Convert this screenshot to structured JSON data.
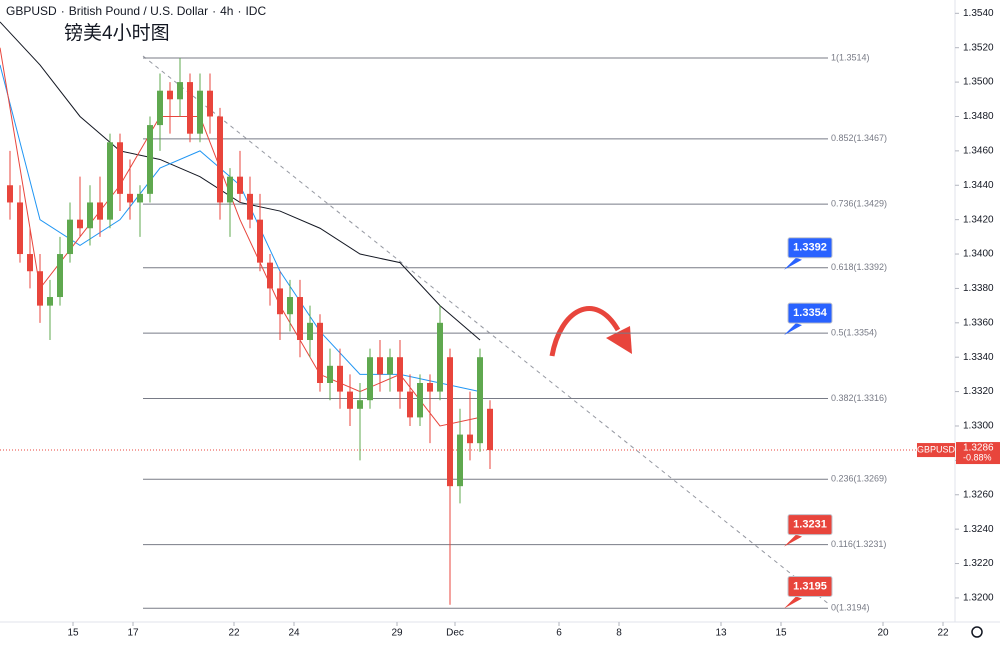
{
  "chart_data": {
    "type": "candlestick",
    "header": {
      "symbol": "GBPUSD",
      "name": "British Pound / U.S. Dollar",
      "interval": "4h",
      "source": "IDC"
    },
    "subtitle": "镑美4小时图",
    "up_color": "#5fa84f",
    "down_color": "#e8453c",
    "xlim": [
      0,
      191
    ],
    "xticks": [
      {
        "value": 14.6,
        "label": "15"
      },
      {
        "value": 26.6,
        "label": "17"
      },
      {
        "value": 46.8,
        "label": "22"
      },
      {
        "value": 58.8,
        "label": "24"
      },
      {
        "value": 79.4,
        "label": "29"
      },
      {
        "value": 91,
        "label": "Dec"
      },
      {
        "value": 111.8,
        "label": "6"
      },
      {
        "value": 123.8,
        "label": "8"
      },
      {
        "value": 144.2,
        "label": "13"
      },
      {
        "value": 156.2,
        "label": "15"
      },
      {
        "value": 176.6,
        "label": "20"
      },
      {
        "value": 188.6,
        "label": "22"
      }
    ],
    "ylim": [
      1.3186,
      1.3546
    ],
    "yticks": [
      {
        "value": 1.354,
        "label": "1.3540"
      },
      {
        "value": 1.352,
        "label": "1.3520"
      },
      {
        "value": 1.35,
        "label": "1.3500"
      },
      {
        "value": 1.348,
        "label": "1.3480"
      },
      {
        "value": 1.346,
        "label": "1.3460"
      },
      {
        "value": 1.344,
        "label": "1.3440"
      },
      {
        "value": 1.342,
        "label": "1.3420"
      },
      {
        "value": 1.34,
        "label": "1.3400"
      },
      {
        "value": 1.338,
        "label": "1.3380"
      },
      {
        "value": 1.336,
        "label": "1.3360"
      },
      {
        "value": 1.334,
        "label": "1.3340"
      },
      {
        "value": 1.332,
        "label": "1.3320"
      },
      {
        "value": 1.33,
        "label": "1.3300"
      },
      {
        "value": 1.328,
        "label": "1.3280"
      },
      {
        "value": 1.326,
        "label": "1.3260"
      },
      {
        "value": 1.324,
        "label": "1.3240"
      },
      {
        "value": 1.322,
        "label": "1.3220"
      },
      {
        "value": 1.32,
        "label": "1.3200"
      }
    ],
    "candles": {
      "x": [
        2,
        4,
        6,
        8,
        10,
        12,
        14,
        16,
        18,
        20,
        22,
        24,
        26,
        28,
        30,
        32,
        34,
        36,
        38,
        40,
        42,
        44,
        46,
        48,
        50,
        52,
        54,
        56,
        58,
        60,
        62,
        64,
        66,
        68,
        70,
        72,
        74,
        76,
        78,
        80,
        82,
        84,
        86,
        88,
        90,
        92,
        94,
        96,
        98
      ],
      "open": [
        1.344,
        1.343,
        1.34,
        1.339,
        1.337,
        1.3375,
        1.34,
        1.342,
        1.3415,
        1.343,
        1.342,
        1.3465,
        1.3435,
        1.343,
        1.3435,
        1.3475,
        1.3495,
        1.349,
        1.35,
        1.347,
        1.3495,
        1.348,
        1.343,
        1.3445,
        1.3435,
        1.342,
        1.3395,
        1.338,
        1.3365,
        1.3375,
        1.335,
        1.336,
        1.3325,
        1.3335,
        1.332,
        1.331,
        1.3315,
        1.334,
        1.333,
        1.334,
        1.332,
        1.3305,
        1.3325,
        1.332,
        1.334,
        1.3265,
        1.3295,
        1.329,
        1.331
      ],
      "high": [
        1.346,
        1.344,
        1.3415,
        1.34,
        1.3385,
        1.341,
        1.343,
        1.3445,
        1.344,
        1.3445,
        1.347,
        1.347,
        1.3455,
        1.344,
        1.348,
        1.3505,
        1.35,
        1.3514,
        1.3505,
        1.3505,
        1.3505,
        1.3485,
        1.345,
        1.346,
        1.3445,
        1.3435,
        1.34,
        1.339,
        1.3385,
        1.3385,
        1.337,
        1.3365,
        1.3345,
        1.3345,
        1.333,
        1.3325,
        1.3345,
        1.335,
        1.3345,
        1.335,
        1.333,
        1.333,
        1.333,
        1.337,
        1.3345,
        1.331,
        1.332,
        1.3345,
        1.3315
      ],
      "low": [
        1.342,
        1.3395,
        1.338,
        1.336,
        1.335,
        1.337,
        1.3395,
        1.341,
        1.3405,
        1.341,
        1.3415,
        1.3425,
        1.342,
        1.341,
        1.343,
        1.346,
        1.347,
        1.348,
        1.3465,
        1.3465,
        1.347,
        1.342,
        1.341,
        1.343,
        1.3415,
        1.339,
        1.337,
        1.335,
        1.3355,
        1.334,
        1.334,
        1.332,
        1.3315,
        1.331,
        1.33,
        1.328,
        1.331,
        1.332,
        1.332,
        1.331,
        1.33,
        1.33,
        1.329,
        1.3315,
        1.3196,
        1.3255,
        1.328,
        1.3285,
        1.3275
      ],
      "close": [
        1.343,
        1.34,
        1.339,
        1.337,
        1.3375,
        1.34,
        1.342,
        1.3415,
        1.343,
        1.342,
        1.3465,
        1.3435,
        1.343,
        1.3435,
        1.3475,
        1.3495,
        1.349,
        1.35,
        1.347,
        1.3495,
        1.348,
        1.343,
        1.3445,
        1.3435,
        1.342,
        1.3395,
        1.338,
        1.3365,
        1.3375,
        1.335,
        1.336,
        1.3325,
        1.3335,
        1.332,
        1.331,
        1.3315,
        1.334,
        1.333,
        1.334,
        1.332,
        1.3305,
        1.3325,
        1.332,
        1.336,
        1.3265,
        1.3295,
        1.329,
        1.334,
        1.3286
      ]
    },
    "moving_averages": [
      {
        "color": "#131722",
        "x": [
          0,
          8,
          16,
          24,
          32,
          40,
          48,
          56,
          64,
          72,
          80,
          88,
          96
        ],
        "values": [
          1.3535,
          1.351,
          1.348,
          1.346,
          1.3455,
          1.3445,
          1.343,
          1.3425,
          1.3415,
          1.34,
          1.3395,
          1.337,
          1.335
        ]
      },
      {
        "color": "#2196f3",
        "x": [
          0,
          8,
          16,
          24,
          32,
          40,
          48,
          56,
          64,
          72,
          80,
          88,
          96
        ],
        "values": [
          1.351,
          1.342,
          1.3405,
          1.342,
          1.345,
          1.346,
          1.344,
          1.339,
          1.3355,
          1.333,
          1.333,
          1.3325,
          1.332
        ]
      },
      {
        "color": "#e8453c",
        "x": [
          0,
          8,
          16,
          24,
          32,
          40,
          48,
          56,
          64,
          72,
          80,
          88,
          96
        ],
        "values": [
          1.352,
          1.338,
          1.341,
          1.344,
          1.348,
          1.348,
          1.342,
          1.337,
          1.333,
          1.332,
          1.333,
          1.33,
          1.3305
        ]
      }
    ],
    "fib_levels": [
      {
        "value": 1.3514,
        "label": "1(1.3514)"
      },
      {
        "value": 1.3467,
        "label": "0.852(1.3467)"
      },
      {
        "value": 1.3429,
        "label": "0.736(1.3429)"
      },
      {
        "value": 1.3392,
        "label": "0.618(1.3392)"
      },
      {
        "value": 1.3354,
        "label": "0.5(1.3354)"
      },
      {
        "value": 1.3316,
        "label": "0.382(1.3316)"
      },
      {
        "value": 1.3269,
        "label": "0.236(1.3269)"
      },
      {
        "value": 1.3231,
        "label": "0.116(1.3231)"
      },
      {
        "value": 1.3194,
        "label": "0(1.3194)"
      }
    ],
    "badges": [
      {
        "value": 1.3392,
        "color": "#2962ff"
      },
      {
        "value": 1.3354,
        "color": "#2962ff"
      },
      {
        "value": 1.3231,
        "color": "#e8453c"
      },
      {
        "value": 1.3195,
        "color": "#e8453c"
      }
    ],
    "last_price": {
      "symbol": "GBPUSD",
      "value": 1.3286,
      "change": {
        "value": -0.88,
        "label": "-0.88%"
      },
      "color": "#e8453c"
    }
  }
}
